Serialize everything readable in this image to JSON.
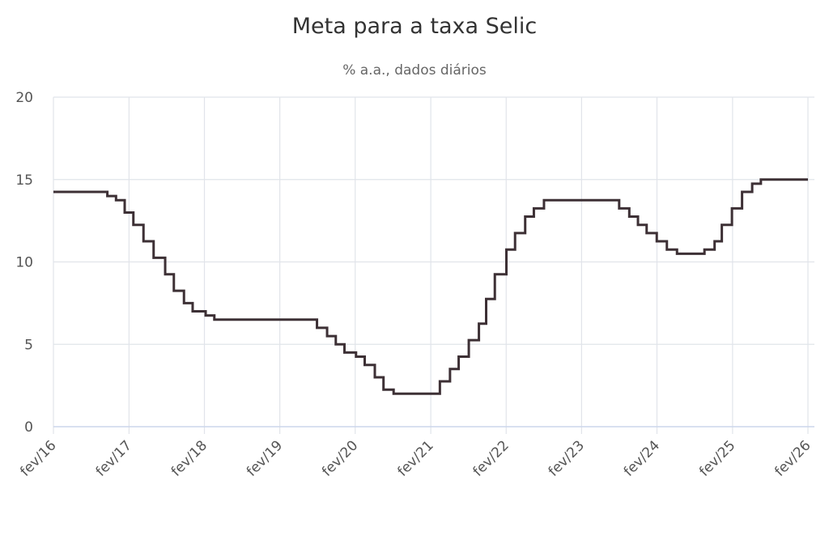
{
  "chart_data": {
    "type": "line",
    "title": "Meta para a taxa Selic",
    "subtitle": "% a.a., dados diários",
    "xlabel": "",
    "ylabel": "",
    "x_tick_labels": [
      "fev/16",
      "fev/17",
      "fev/18",
      "fev/19",
      "fev/20",
      "fev/21",
      "fev/22",
      "fev/23",
      "fev/24",
      "fev/25",
      "fev/26"
    ],
    "y_ticks": [
      0,
      5,
      10,
      15,
      20
    ],
    "ylim": [
      0,
      20
    ],
    "xlim": [
      "2016-02-01",
      "2026-02-01"
    ],
    "grid": true,
    "line_color": "#3d3035",
    "series": [
      {
        "step": true,
        "x": [
          "2016-02-01",
          "2016-10-19",
          "2016-11-30",
          "2017-01-11",
          "2017-02-22",
          "2017-04-12",
          "2017-05-31",
          "2017-07-26",
          "2017-09-06",
          "2017-10-25",
          "2017-12-06",
          "2018-02-07",
          "2018-03-21",
          "2019-07-31",
          "2019-09-18",
          "2019-10-30",
          "2019-12-11",
          "2020-02-05",
          "2020-03-18",
          "2020-05-06",
          "2020-06-17",
          "2020-08-05",
          "2021-03-17",
          "2021-05-05",
          "2021-06-16",
          "2021-08-04",
          "2021-09-22",
          "2021-10-27",
          "2021-12-08",
          "2022-02-02",
          "2022-03-16",
          "2022-05-04",
          "2022-06-15",
          "2022-08-03",
          "2023-08-02",
          "2023-09-20",
          "2023-11-01",
          "2023-12-13",
          "2024-01-31",
          "2024-03-20",
          "2024-05-08",
          "2024-09-18",
          "2024-11-06",
          "2024-12-11",
          "2025-01-29",
          "2025-03-19",
          "2025-05-07",
          "2025-06-18",
          "2026-02-01"
        ],
        "values": [
          14.25,
          14.0,
          13.75,
          13.0,
          12.25,
          11.25,
          10.25,
          9.25,
          8.25,
          7.5,
          7.0,
          6.75,
          6.5,
          6.0,
          5.5,
          5.0,
          4.5,
          4.25,
          3.75,
          3.0,
          2.25,
          2.0,
          2.75,
          3.5,
          4.25,
          5.25,
          6.25,
          7.75,
          9.25,
          10.75,
          11.75,
          12.75,
          13.25,
          13.75,
          13.25,
          12.75,
          12.25,
          11.75,
          11.25,
          10.75,
          10.5,
          10.75,
          11.25,
          12.25,
          13.25,
          14.25,
          14.75,
          15.0,
          15.0
        ]
      }
    ]
  }
}
